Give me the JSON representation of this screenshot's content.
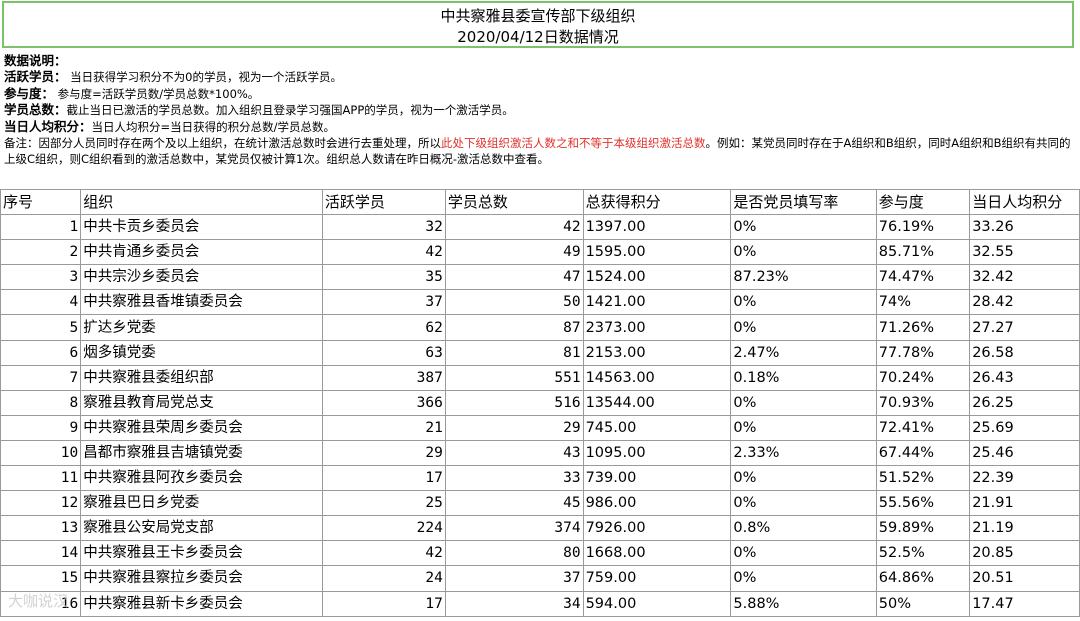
{
  "title": {
    "line1": "中共察雅县委宣传部下级组织",
    "line2": "2020/04/12日数据情况"
  },
  "notes": {
    "heading": "数据说明：",
    "items": [
      {
        "label": "活跃学员：",
        "text": " 当日获得学习积分不为0的学员，视为一个活跃学员。"
      },
      {
        "label": "参与度：",
        "text": " 参与度=活跃学员数/学员总数*100%。"
      },
      {
        "label": "学员总数：",
        "text": "截止当日已激活的学员总数。加入组织且登录学习强国APP的学员，视为一个激活学员。"
      },
      {
        "label": "当日人均积分：",
        "text": "当日人均积分=当日获得的积分总数/学员总数。"
      }
    ],
    "remark_prefix": "备注：因部分人员同时存在两个及以上组织，在统计激活总数时会进行去重处理，所以",
    "remark_red": "此处下级组织激活人数之和不等于本级组织激活总数",
    "remark_suffix": "。例如：某党员同时存在于A组织和B组织，同时A组织和B组织有共同的上级C组织，则C组织看到的激活总数中，某党员仅被计算1次。组织总人数请在昨日概况-激活总数中查看。"
  },
  "table": {
    "headers": [
      "序号",
      "组织",
      "活跃学员",
      "学员总数",
      "总获得积分",
      "是否党员填写率",
      "参与度",
      "当日人均积分"
    ],
    "rows": [
      [
        "1",
        "中共卡贡乡委员会",
        "32",
        "42",
        "1397.00",
        "0%",
        "76.19%",
        "33.26"
      ],
      [
        "2",
        "中共肯通乡委员会",
        "42",
        "49",
        "1595.00",
        "0%",
        "85.71%",
        "32.55"
      ],
      [
        "3",
        "中共宗沙乡委员会",
        "35",
        "47",
        "1524.00",
        "87.23%",
        "74.47%",
        "32.42"
      ],
      [
        "4",
        "中共察雅县香堆镇委员会",
        "37",
        "50",
        "1421.00",
        "0%",
        "74%",
        "28.42"
      ],
      [
        "5",
        "扩达乡党委",
        "62",
        "87",
        "2373.00",
        "0%",
        "71.26%",
        "27.27"
      ],
      [
        "6",
        "烟多镇党委",
        "63",
        "81",
        "2153.00",
        "2.47%",
        "77.78%",
        "26.58"
      ],
      [
        "7",
        "中共察雅县委组织部",
        "387",
        "551",
        "14563.00",
        "0.18%",
        "70.24%",
        "26.43"
      ],
      [
        "8",
        "察雅县教育局党总支",
        "366",
        "516",
        "13544.00",
        "0%",
        "70.93%",
        "26.25"
      ],
      [
        "9",
        "中共察雅县荣周乡委员会",
        "21",
        "29",
        "745.00",
        "0%",
        "72.41%",
        "25.69"
      ],
      [
        "10",
        "昌都市察雅县吉塘镇党委",
        "29",
        "43",
        "1095.00",
        "2.33%",
        "67.44%",
        "25.46"
      ],
      [
        "11",
        "中共察雅县阿孜乡委员会",
        "17",
        "33",
        "739.00",
        "0%",
        "51.52%",
        "22.39"
      ],
      [
        "12",
        "察雅县巴日乡党委",
        "25",
        "45",
        "986.00",
        "0%",
        "55.56%",
        "21.91"
      ],
      [
        "13",
        "察雅县公安局党支部",
        "224",
        "374",
        "7926.00",
        "0.8%",
        "59.89%",
        "21.19"
      ],
      [
        "14",
        "中共察雅县王卡乡委员会",
        "42",
        "80",
        "1668.00",
        "0%",
        "52.5%",
        "20.85"
      ],
      [
        "15",
        "中共察雅县察拉乡委员会",
        "24",
        "37",
        "759.00",
        "0%",
        "64.86%",
        "20.51"
      ],
      [
        "16",
        "中共察雅县新卡乡委员会",
        "17",
        "34",
        "594.00",
        "5.88%",
        "50%",
        "17.47"
      ]
    ]
  },
  "watermark": "大咖说汉"
}
